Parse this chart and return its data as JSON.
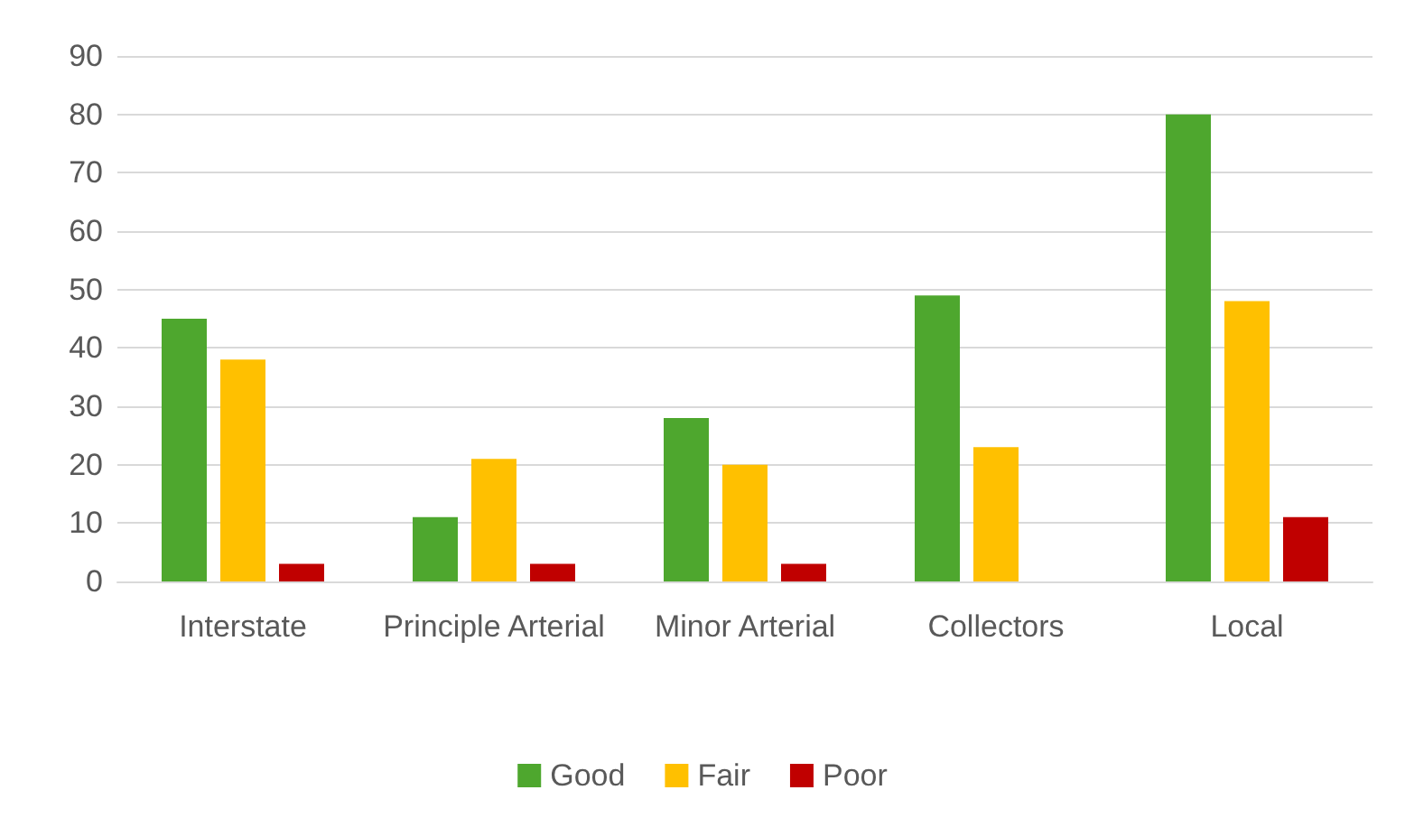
{
  "chart_data": {
    "type": "bar",
    "categories": [
      "Interstate",
      "Principle Arterial",
      "Minor Arterial",
      "Collectors",
      "Local"
    ],
    "series": [
      {
        "name": "Good",
        "color": "#4ea72e",
        "values": [
          45,
          11,
          28,
          49,
          80
        ]
      },
      {
        "name": "Fair",
        "color": "#ffc000",
        "values": [
          38,
          21,
          20,
          23,
          48
        ]
      },
      {
        "name": "Poor",
        "color": "#c00000",
        "values": [
          3,
          3,
          3,
          0,
          11
        ]
      }
    ],
    "ylim": [
      0,
      90
    ],
    "yticks": [
      0,
      10,
      20,
      30,
      40,
      50,
      60,
      70,
      80,
      90
    ],
    "grid": "y",
    "legend": "bottom"
  }
}
